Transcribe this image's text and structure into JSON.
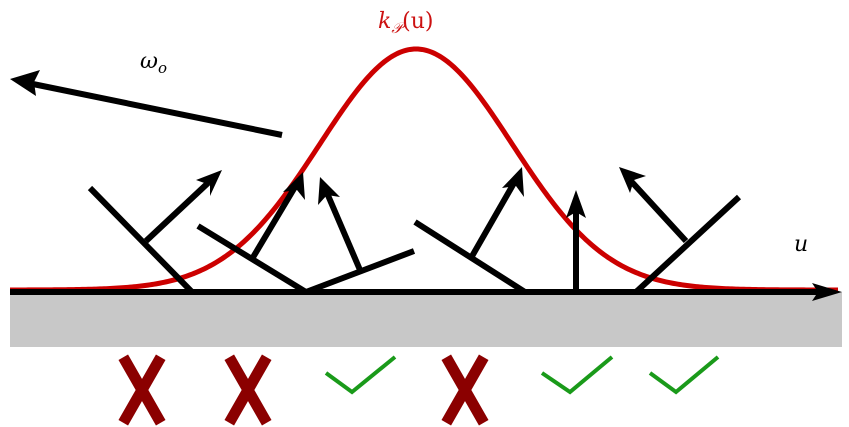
{
  "labels": {
    "kernel_main": "k",
    "kernel_sub": "𝒫",
    "kernel_arg": "(u)",
    "omega_main": "ω",
    "omega_sub": "o",
    "axis_u": "u"
  },
  "colors": {
    "curve": "#cc0000",
    "ground": "#c8c8c8",
    "axis": "#000000",
    "cross": "#8b0000",
    "check": "#1a9a1a"
  },
  "marks": [
    "cross",
    "cross",
    "check",
    "cross",
    "check",
    "check"
  ],
  "icons": {
    "cross": "x-mark-icon",
    "check": "check-mark-icon"
  }
}
